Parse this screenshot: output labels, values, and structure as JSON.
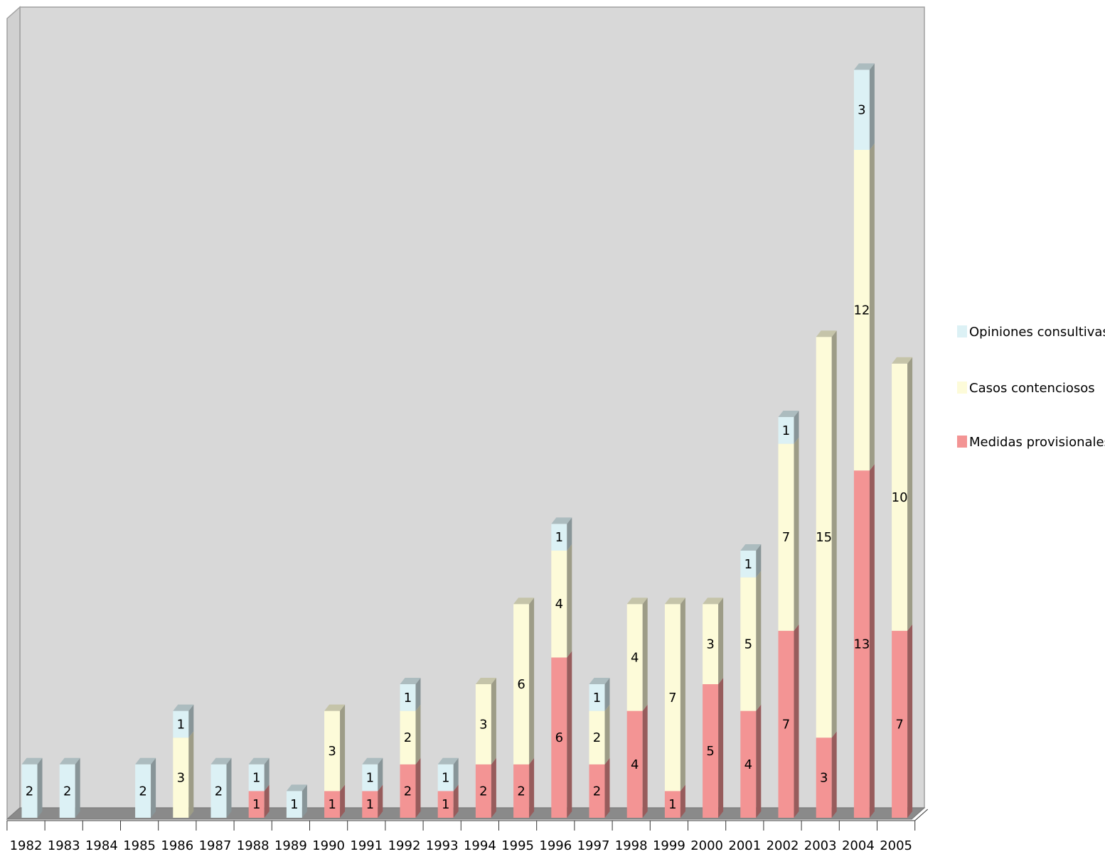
{
  "chart_data": {
    "type": "bar",
    "stacked": true,
    "three_d": true,
    "categories": [
      "1982",
      "1983",
      "1984",
      "1985",
      "1986",
      "1987",
      "1988",
      "1989",
      "1990",
      "1991",
      "1992",
      "1993",
      "1994",
      "1995",
      "1996",
      "1997",
      "1998",
      "1999",
      "2000",
      "2001",
      "2002",
      "2003",
      "2004",
      "2005"
    ],
    "series": [
      {
        "name": "Medidas provisionales",
        "color": "#f39494",
        "values": [
          0,
          0,
          0,
          0,
          0,
          0,
          1,
          0,
          1,
          1,
          2,
          1,
          2,
          2,
          6,
          2,
          4,
          1,
          5,
          4,
          7,
          3,
          13,
          7
        ]
      },
      {
        "name": "Casos contenciosos",
        "color": "#fdfbd9",
        "values": [
          0,
          0,
          0,
          0,
          3,
          0,
          0,
          0,
          3,
          0,
          2,
          0,
          3,
          6,
          4,
          2,
          4,
          7,
          3,
          5,
          7,
          15,
          12,
          10
        ]
      },
      {
        "name": "Opiniones consultivas",
        "color": "#dcf1f5",
        "values": [
          2,
          2,
          0,
          2,
          1,
          2,
          1,
          1,
          0,
          1,
          1,
          1,
          0,
          0,
          1,
          1,
          0,
          0,
          0,
          1,
          1,
          0,
          3,
          0
        ]
      }
    ],
    "legend": {
      "position": "right",
      "order": [
        "Opiniones consultivas",
        "Casos contenciosos",
        "Medidas provisionales"
      ]
    },
    "ylim": [
      0,
      30
    ],
    "grid": false,
    "title": "",
    "xlabel": "",
    "ylabel": "",
    "background": "#d8d8d8",
    "floor_color": "#8a8a8a"
  }
}
